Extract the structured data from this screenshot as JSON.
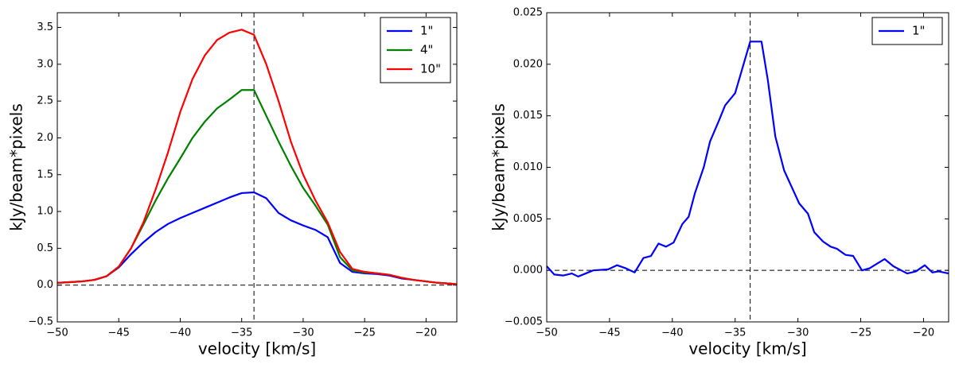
{
  "chart_data": [
    {
      "type": "line",
      "xlabel": "velocity [km/s]",
      "ylabel": "kJy/beam*pixels",
      "xlim": [
        -50,
        -17.5
      ],
      "ylim": [
        -0.5,
        3.7
      ],
      "xticks": [
        {
          "value": -50,
          "label": "−50"
        },
        {
          "value": -45,
          "label": "−45"
        },
        {
          "value": -40,
          "label": "−40"
        },
        {
          "value": -35,
          "label": "−35"
        },
        {
          "value": -30,
          "label": "−30"
        },
        {
          "value": -25,
          "label": "−25"
        },
        {
          "value": -20,
          "label": "−20"
        }
      ],
      "yticks": [
        {
          "value": -0.5,
          "label": "−0.5"
        },
        {
          "value": 0,
          "label": "0.0"
        },
        0.5,
        {
          "value": 1,
          "label": "1.0"
        },
        1.5,
        {
          "value": 2,
          "label": "2.0"
        },
        2.5,
        {
          "value": 3,
          "label": "3.0"
        },
        3.5
      ],
      "vline": -34,
      "hline": 0,
      "legend": "upper right",
      "x": [
        -50,
        -49,
        -48,
        -47,
        -46,
        -45,
        -44,
        -43,
        -42,
        -41,
        -40,
        -39,
        -38,
        -37,
        -36,
        -35,
        -34,
        -33,
        -32,
        -31,
        -30,
        -29,
        -28,
        -27,
        -26,
        -25,
        -24,
        -23,
        -22,
        -21,
        -20,
        -19,
        -18,
        -17.5
      ],
      "series": [
        {
          "name": "1\"",
          "color": "#0000ff",
          "values": [
            0.03,
            0.04,
            0.05,
            0.07,
            0.12,
            0.24,
            0.42,
            0.58,
            0.72,
            0.83,
            0.91,
            0.98,
            1.05,
            1.12,
            1.19,
            1.25,
            1.26,
            1.18,
            0.98,
            0.88,
            0.81,
            0.75,
            0.65,
            0.3,
            0.18,
            0.16,
            0.15,
            0.13,
            0.09,
            0.07,
            0.05,
            0.03,
            0.02,
            0.01
          ]
        },
        {
          "name": "4\"",
          "color": "#008000",
          "values": [
            0.03,
            0.04,
            0.05,
            0.07,
            0.12,
            0.25,
            0.5,
            0.82,
            1.15,
            1.45,
            1.72,
            2.0,
            2.22,
            2.4,
            2.52,
            2.65,
            2.65,
            2.3,
            1.95,
            1.62,
            1.32,
            1.08,
            0.82,
            0.38,
            0.2,
            0.17,
            0.16,
            0.14,
            0.1,
            0.07,
            0.05,
            0.03,
            0.02,
            0.01
          ]
        },
        {
          "name": "10\"",
          "color": "#ff0000",
          "values": [
            0.03,
            0.04,
            0.05,
            0.07,
            0.12,
            0.25,
            0.5,
            0.85,
            1.3,
            1.8,
            2.35,
            2.8,
            3.12,
            3.33,
            3.43,
            3.47,
            3.4,
            3.0,
            2.5,
            1.95,
            1.5,
            1.15,
            0.85,
            0.45,
            0.22,
            0.18,
            0.16,
            0.14,
            0.1,
            0.07,
            0.05,
            0.03,
            0.02,
            0.01
          ]
        }
      ]
    },
    {
      "type": "line",
      "xlabel": "velocity [km/s]",
      "ylabel": "kJy/beam*pixels",
      "xlim": [
        -50,
        -18
      ],
      "ylim": [
        -0.005,
        0.025
      ],
      "xticks": [
        {
          "value": -50,
          "label": "−50"
        },
        {
          "value": -45,
          "label": "−45"
        },
        {
          "value": -40,
          "label": "−40"
        },
        {
          "value": -35,
          "label": "−35"
        },
        {
          "value": -30,
          "label": "−30"
        },
        {
          "value": -25,
          "label": "−25"
        },
        {
          "value": -20,
          "label": "−20"
        }
      ],
      "yticks": [
        {
          "value": -0.005,
          "label": "−0.005"
        },
        {
          "value": 0,
          "label": "0.000"
        },
        0.005,
        {
          "value": 0.01,
          "label": "0.010"
        },
        0.015,
        {
          "value": 0.02,
          "label": "0.020"
        },
        0.025
      ],
      "vline": -33.8,
      "hline": 0,
      "legend": "upper right",
      "x": [
        -50,
        -49.4,
        -48.7,
        -48,
        -47.5,
        -46.3,
        -45.1,
        -44.4,
        -43.7,
        -43,
        -42.3,
        -41.7,
        -41.1,
        -40.5,
        -39.9,
        -39.2,
        -38.7,
        -38.2,
        -37.5,
        -37,
        -36.3,
        -35.8,
        -35,
        -33.8,
        -32.9,
        -32.4,
        -31.8,
        -31.1,
        -29.9,
        -29.2,
        -28.7,
        -28,
        -27.4,
        -26.9,
        -26.2,
        -25.6,
        -24.9,
        -24.3,
        -23.1,
        -22.4,
        -21.3,
        -20.6,
        -19.9,
        -19.3,
        -18.8,
        -18
      ],
      "series": [
        {
          "name": "1\"",
          "color": "#0000ff",
          "values": [
            0.0004,
            -0.0004,
            -0.0005,
            -0.0003,
            -0.0006,
            0.0,
            0.0001,
            0.0005,
            0.0002,
            -0.0002,
            0.0012,
            0.0014,
            0.0026,
            0.0023,
            0.0027,
            0.0045,
            0.0052,
            0.0075,
            0.01,
            0.0125,
            0.0145,
            0.016,
            0.0172,
            0.0222,
            0.0222,
            0.0185,
            0.013,
            0.0097,
            0.0065,
            0.0055,
            0.0037,
            0.0028,
            0.0023,
            0.0021,
            0.0015,
            0.0014,
            0.0,
            0.0002,
            0.0011,
            0.0004,
            -0.0003,
            -0.0001,
            0.0005,
            -0.0002,
            -0.0001,
            -0.0003
          ]
        }
      ]
    }
  ]
}
